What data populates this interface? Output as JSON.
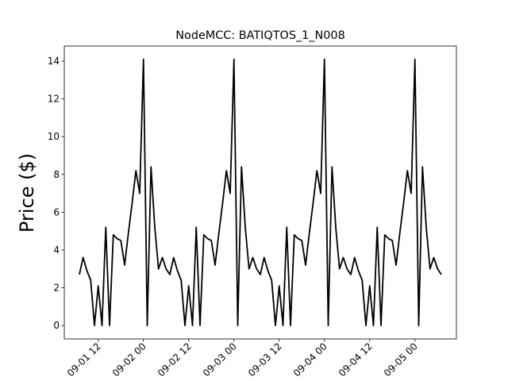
{
  "chart_data": {
    "type": "line",
    "title": "NodeMCC: BATIQTOS_1_N008",
    "ylabel": "Price ($)",
    "x": [
      "09-01 07",
      "09-01 08",
      "09-01 09",
      "09-01 10",
      "09-01 11",
      "09-01 12",
      "09-01 13",
      "09-01 14",
      "09-01 15",
      "09-01 16",
      "09-01 17",
      "09-01 18",
      "09-01 19",
      "09-01 20",
      "09-01 21",
      "09-01 22",
      "09-01 23",
      "09-02 00",
      "09-02 01",
      "09-02 02",
      "09-02 03",
      "09-02 04",
      "09-02 05",
      "09-02 06",
      "09-02 07",
      "09-02 08",
      "09-02 09",
      "09-02 10",
      "09-02 11",
      "09-02 12",
      "09-02 13",
      "09-02 14",
      "09-02 15",
      "09-02 16",
      "09-02 17",
      "09-02 18",
      "09-02 19",
      "09-02 20",
      "09-02 21",
      "09-02 22",
      "09-02 23",
      "09-03 00",
      "09-03 01",
      "09-03 02",
      "09-03 03",
      "09-03 04",
      "09-03 05",
      "09-03 06",
      "09-03 07",
      "09-03 08",
      "09-03 09",
      "09-03 10",
      "09-03 11",
      "09-03 12",
      "09-03 13",
      "09-03 14",
      "09-03 15",
      "09-03 16",
      "09-03 17",
      "09-03 18",
      "09-03 19",
      "09-03 20",
      "09-03 21",
      "09-03 22",
      "09-03 23",
      "09-04 00",
      "09-04 01",
      "09-04 02",
      "09-04 03",
      "09-04 04",
      "09-04 05",
      "09-04 06",
      "09-04 07",
      "09-04 08",
      "09-04 09",
      "09-04 10",
      "09-04 11",
      "09-04 12",
      "09-04 13",
      "09-04 14",
      "09-04 15",
      "09-04 16",
      "09-04 17",
      "09-04 18",
      "09-04 19",
      "09-04 20",
      "09-04 21",
      "09-04 22",
      "09-04 23",
      "09-05 00",
      "09-05 01",
      "09-05 02",
      "09-05 03",
      "09-05 04",
      "09-05 05",
      "09-05 06",
      "09-05 07"
    ],
    "values": [
      2.7,
      3.6,
      2.9,
      2.4,
      0,
      2.1,
      0,
      5.2,
      0,
      4.8,
      4.6,
      4.5,
      3.2,
      4.9,
      6.5,
      8.2,
      7.0,
      14.1,
      0,
      8.4,
      5.2,
      3.0,
      3.6,
      3.0,
      2.7,
      3.6,
      2.9,
      2.4,
      0,
      2.1,
      0,
      5.2,
      0,
      4.8,
      4.6,
      4.5,
      3.2,
      4.9,
      6.5,
      8.2,
      7.0,
      14.1,
      0,
      8.4,
      5.2,
      3.0,
      3.6,
      3.0,
      2.7,
      3.6,
      2.9,
      2.4,
      0,
      2.1,
      0,
      5.2,
      0,
      4.8,
      4.6,
      4.5,
      3.2,
      4.9,
      6.5,
      8.2,
      7.0,
      14.1,
      0,
      8.4,
      5.2,
      3.0,
      3.6,
      3.0,
      2.7,
      3.6,
      2.9,
      2.4,
      0,
      2.1,
      0,
      5.2,
      0,
      4.8,
      4.6,
      4.5,
      3.2,
      4.9,
      6.5,
      8.2,
      7.0,
      14.1,
      0,
      8.4,
      5.2,
      3.0,
      3.6,
      3.0,
      2.7
    ],
    "color": "#000000",
    "xlim": [
      "09-01 03",
      "09-05 11"
    ],
    "xticks": [
      "09-01 12",
      "09-02 00",
      "09-02 12",
      "09-03 00",
      "09-03 12",
      "09-04 00",
      "09-04 12",
      "09-05 00"
    ],
    "ylim": [
      -0.71,
      14.8
    ],
    "yticks": [
      0,
      2,
      4,
      6,
      8,
      10,
      12,
      14
    ]
  }
}
